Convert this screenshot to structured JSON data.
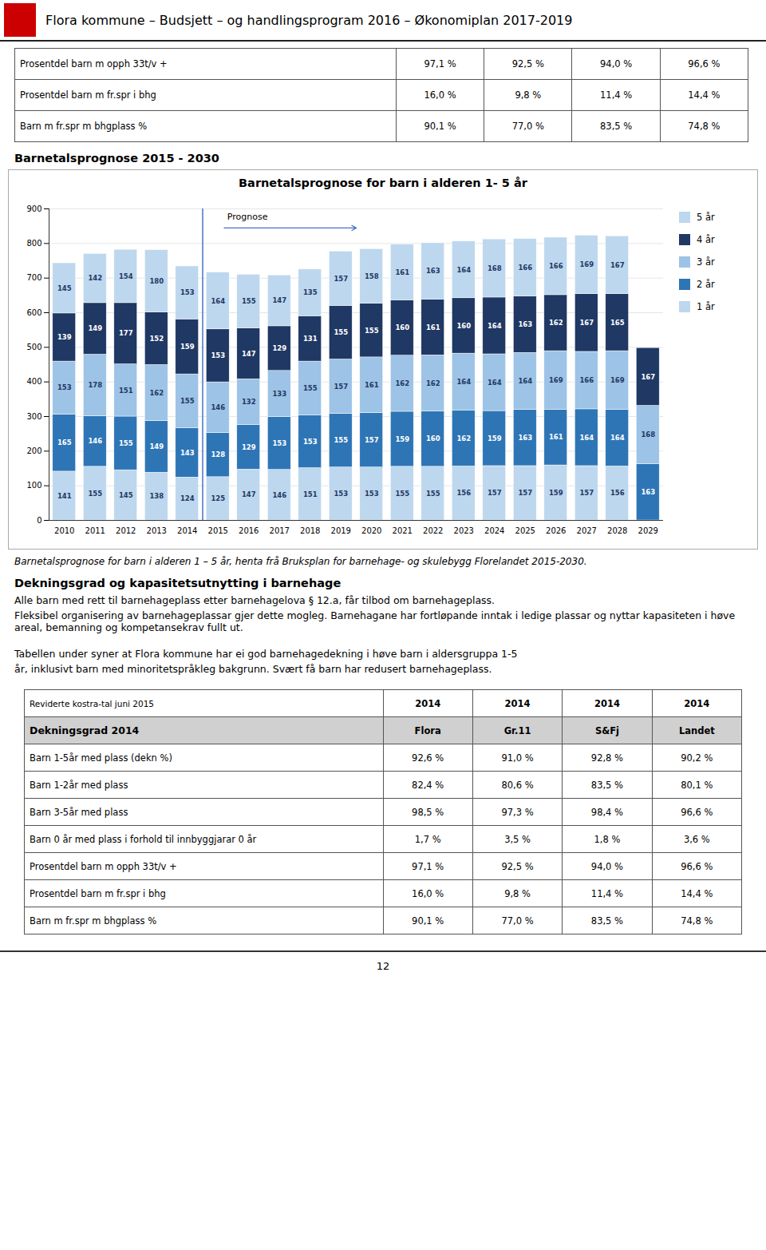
{
  "header_title": "Flora kommune – Budsjett – og handlingsprogram 2016 – Økonomiplan 2017-2019",
  "top_table": {
    "rows": [
      {
        "label": "Prosentdel barn m opph 33t/v +",
        "values": [
          "97,1 %",
          "92,5 %",
          "94,0 %",
          "96,6 %"
        ]
      },
      {
        "label": "Prosentdel barn m fr.spr i bhg",
        "values": [
          "16,0 %",
          "9,8 %",
          "11,4 %",
          "14,4 %"
        ]
      },
      {
        "label": "Barn m fr.spr m bhgplass %",
        "values": [
          "90,1 %",
          "77,0 %",
          "83,5 %",
          "74,8 %"
        ]
      }
    ]
  },
  "section_title": "Barnetalsprognose 2015 - 2030",
  "chart_data": {
    "type": "bar",
    "stacked": true,
    "title": "Barnetalsprognose for barn i alderen 1- 5 år",
    "categories": [
      "2010",
      "2011",
      "2012",
      "2013",
      "2014",
      "2015",
      "2016",
      "2017",
      "2018",
      "2019",
      "2020",
      "2021",
      "2022",
      "2023",
      "2024",
      "2025",
      "2026",
      "2027",
      "2028",
      "2029"
    ],
    "series": [
      {
        "name": "1 år",
        "color": "#BDD7EE",
        "values": [
          141,
          155,
          145,
          138,
          124,
          125,
          147,
          146,
          151,
          153,
          153,
          155,
          155,
          156,
          157,
          157,
          159,
          157,
          156,
          0
        ]
      },
      {
        "name": "2 år",
        "color": "#2E75B6",
        "values": [
          165,
          146,
          155,
          149,
          143,
          128,
          129,
          153,
          153,
          155,
          157,
          159,
          160,
          162,
          159,
          163,
          161,
          164,
          164,
          163
        ]
      },
      {
        "name": "3 år",
        "color": "#9DC3E6",
        "values": [
          153,
          178,
          151,
          162,
          155,
          146,
          132,
          133,
          155,
          157,
          161,
          162,
          162,
          164,
          164,
          164,
          169,
          166,
          169,
          168
        ]
      },
      {
        "name": "4 år",
        "color": "#1F3864",
        "values": [
          139,
          149,
          177,
          152,
          159,
          153,
          147,
          129,
          131,
          155,
          155,
          160,
          161,
          160,
          164,
          163,
          162,
          167,
          165,
          167
        ]
      },
      {
        "name": "5 år",
        "color": "#BDD7EE",
        "values": [
          145,
          142,
          154,
          180,
          153,
          164,
          155,
          147,
          135,
          157,
          158,
          161,
          163,
          164,
          168,
          166,
          166,
          169,
          167,
          0
        ]
      }
    ],
    "ylim": [
      0,
      900
    ],
    "yticks": [
      0,
      100,
      200,
      300,
      400,
      500,
      600,
      700,
      800,
      900
    ],
    "grid": true,
    "legend": "right",
    "data_labels": true,
    "annotations": [
      {
        "text": "Prognose",
        "x": "2015",
        "x_end": "2019",
        "y": 868,
        "color": "#4472C4"
      }
    ]
  },
  "caption": "Barnetalsprognose for barn i alderen 1 – 5 år, henta frå Bruksplan for barnehage- og skulebygg Florelandet 2015-2030.",
  "section2_title": "Dekningsgrad og kapasitetsutnytting i barnehage",
  "section2_text": [
    "Alle barn med rett til barnehageplass etter barnehagelova § 12.a, får tilbod om barnehageplass.",
    "Fleksibel organisering av barnehageplassar gjer dette mogleg.  Barnehagane har fortløpande inntak i ledige plassar og nyttar kapasiteten i høve areal, bemanning og kompetansekrav fullt ut."
  ],
  "section3_text": [
    "Tabellen under syner at Flora kommune har ei god barnehagedekning i høve barn i aldersgruppa 1-5",
    "år, inklusivt barn med minoritetspråkleg bakgrunn. Svært få barn har redusert barnehageplass."
  ],
  "bottom_table": {
    "header_top": [
      "Reviderte kostra-tal juni 2015",
      "2014",
      "2014",
      "2014",
      "2014"
    ],
    "header_bold": [
      "Dekningsgrad 2014",
      "Flora",
      "Gr.11",
      "S&Fj",
      "Landet"
    ],
    "rows": [
      {
        "label": "Barn 1-5år med plass (dekn %)",
        "values": [
          "92,6 %",
          "91,0 %",
          "92,8 %",
          "90,2 %"
        ]
      },
      {
        "label": "Barn 1-2år med plass",
        "values": [
          "82,4 %",
          "80,6 %",
          "83,5 %",
          "80,1 %"
        ]
      },
      {
        "label": "Barn 3-5år med plass",
        "values": [
          "98,5 %",
          "97,3 %",
          "98,4 %",
          "96,6 %"
        ]
      },
      {
        "label": "Barn 0 år med plass i forhold til innbyggjarar 0 år",
        "values": [
          "1,7 %",
          "3,5 %",
          "1,8 %",
          "3,6 %"
        ]
      },
      {
        "label": "Prosentdel barn m opph 33t/v +",
        "values": [
          "97,1 %",
          "92,5 %",
          "94,0 %",
          "96,6 %"
        ]
      },
      {
        "label": "Prosentdel barn m fr.spr i bhg",
        "values": [
          "16,0 %",
          "9,8 %",
          "11,4 %",
          "14,4 %"
        ]
      },
      {
        "label": "Barn m fr.spr m bhgplass %",
        "values": [
          "90,1 %",
          "77,0 %",
          "83,5 %",
          "74,8 %"
        ]
      }
    ]
  },
  "page_number": "12"
}
